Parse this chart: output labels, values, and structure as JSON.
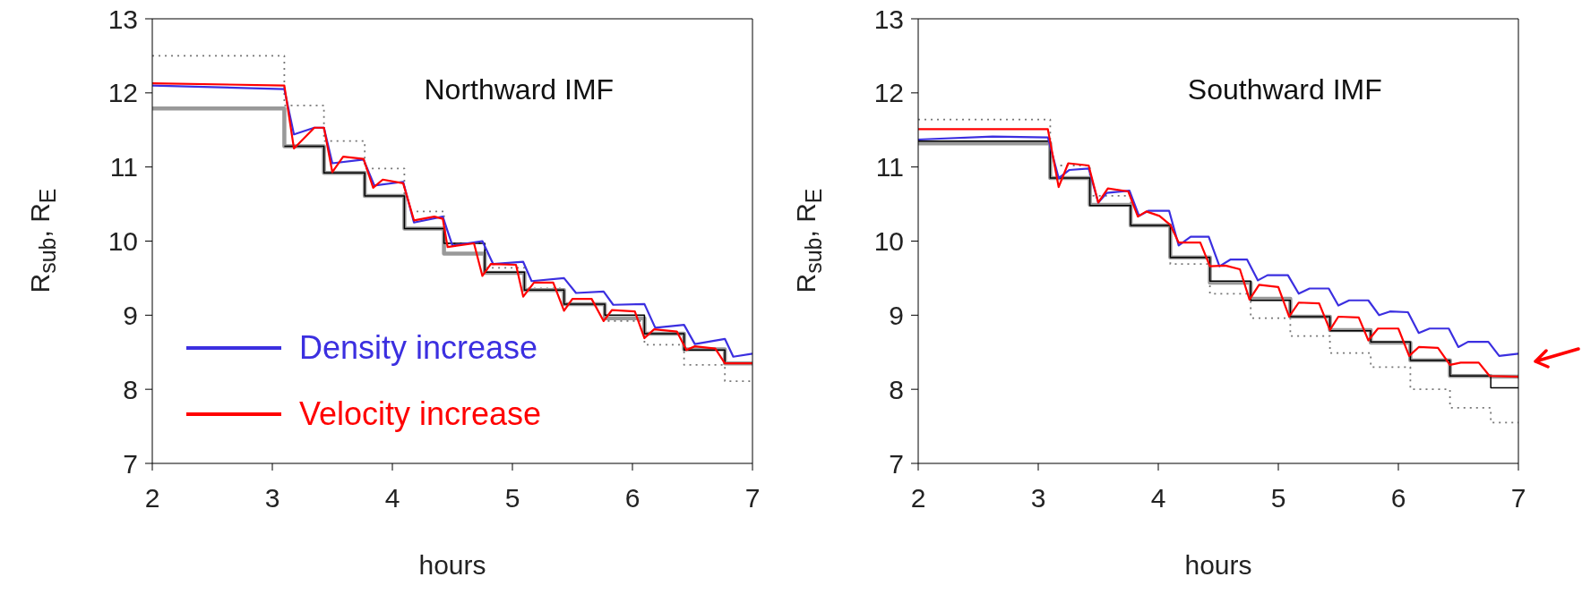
{
  "chart_data": [
    {
      "type": "line",
      "title": "Northward IMF",
      "xlabel": "hours",
      "ylabel": "R$_{sub}$, R$_{E}$",
      "xlim": [
        2,
        7
      ],
      "xticks": [
        2,
        3,
        4,
        5,
        6,
        7
      ],
      "ylim": [
        7,
        13
      ],
      "yticks": [
        7,
        8,
        9,
        10,
        11,
        12,
        13
      ],
      "legend": "bottom left",
      "series": [
        {
          "type": "step",
          "color": "#777777",
          "line_style": "dotted",
          "x": [
            2,
            3.1,
            3.43,
            3.77,
            4.1,
            4.43,
            4.77,
            5.1,
            5.43,
            5.77,
            6.1,
            6.43,
            6.77,
            7
          ],
          "values": [
            12.5,
            11.83,
            11.35,
            10.98,
            10.4,
            9.97,
            9.64,
            9.36,
            9.14,
            8.92,
            8.6,
            8.33,
            8.11,
            8.11
          ]
        },
        {
          "type": "step",
          "color": "#999999",
          "x": [
            2,
            3.1,
            3.43,
            3.77,
            4.1,
            4.43,
            4.77,
            5.1,
            5.43,
            5.77,
            6.1,
            6.43,
            6.77,
            7
          ],
          "values": [
            11.79,
            11.28,
            10.92,
            10.61,
            10.17,
            9.83,
            9.57,
            9.34,
            9.15,
            8.96,
            8.75,
            8.54,
            8.35,
            8.35
          ]
        },
        {
          "type": "step",
          "color": "#000000",
          "x": [
            3.1,
            3.43,
            3.77,
            4.1,
            4.43,
            4.77,
            5.1,
            5.43,
            5.77,
            6.1,
            6.43,
            6.77,
            7
          ],
          "values": [
            11.28,
            10.92,
            10.61,
            10.17,
            9.97,
            9.58,
            9.34,
            9.15,
            9.0,
            8.75,
            8.53,
            8.35,
            8.35
          ]
        },
        {
          "type": "line",
          "name": "Density increase",
          "color": "#3b2fe0",
          "x": [
            2,
            3.1,
            3.18,
            3.35,
            3.43,
            3.5,
            3.76,
            3.85,
            4.09,
            4.18,
            4.42,
            4.5,
            4.75,
            4.84,
            5.09,
            5.16,
            5.43,
            5.53,
            5.76,
            5.84,
            6.1,
            6.19,
            6.43,
            6.52,
            6.77,
            6.84,
            7
          ],
          "values": [
            12.1,
            12.05,
            11.44,
            11.53,
            11.53,
            11.05,
            11.1,
            10.75,
            10.8,
            10.25,
            10.33,
            9.94,
            10.0,
            9.69,
            9.72,
            9.46,
            9.5,
            9.3,
            9.32,
            9.14,
            9.15,
            8.83,
            8.87,
            8.61,
            8.68,
            8.44,
            8.48
          ]
        },
        {
          "type": "line",
          "name": "Velocity increase",
          "color": "#ff0000",
          "x": [
            2,
            3.1,
            3.18,
            3.35,
            3.43,
            3.5,
            3.59,
            3.76,
            3.84,
            3.92,
            4.09,
            4.18,
            4.35,
            4.42,
            4.46,
            4.68,
            4.75,
            4.82,
            5.03,
            5.09,
            5.18,
            5.34,
            5.43,
            5.5,
            5.66,
            5.76,
            5.83,
            6.02,
            6.1,
            6.18,
            6.37,
            6.45,
            6.52,
            6.69,
            6.77,
            7
          ],
          "values": [
            12.13,
            12.1,
            11.25,
            11.53,
            11.53,
            10.93,
            11.14,
            11.11,
            10.72,
            10.83,
            10.78,
            10.28,
            10.33,
            10.3,
            9.92,
            9.97,
            9.53,
            9.69,
            9.68,
            9.25,
            9.44,
            9.44,
            9.06,
            9.22,
            9.22,
            8.92,
            9.07,
            9.05,
            8.69,
            8.81,
            8.78,
            8.53,
            8.58,
            8.55,
            8.35,
            8.35
          ]
        }
      ]
    },
    {
      "type": "line",
      "title": "Southward IMF",
      "xlabel": "hours",
      "ylabel": "R$_{sub}$, R$_{E}$",
      "xlim": [
        2,
        7
      ],
      "xticks": [
        2,
        3,
        4,
        5,
        6,
        7
      ],
      "ylim": [
        7,
        13
      ],
      "yticks": [
        7,
        8,
        9,
        10,
        11,
        12,
        13
      ],
      "series": [
        {
          "type": "step",
          "color": "#777777",
          "line_style": "dotted",
          "x": [
            2,
            3.1,
            3.43,
            3.77,
            4.1,
            4.43,
            4.77,
            5.1,
            5.43,
            5.77,
            6.1,
            6.43,
            6.77,
            7
          ],
          "values": [
            11.64,
            11.02,
            10.61,
            10.22,
            9.69,
            9.29,
            8.96,
            8.72,
            8.49,
            8.3,
            8.0,
            7.75,
            7.55,
            7.55
          ]
        },
        {
          "type": "step",
          "color": "#999999",
          "x": [
            2,
            3.1,
            3.43,
            3.77,
            4.1,
            4.43,
            4.77,
            5.1,
            5.43,
            5.77,
            6.1,
            6.43,
            6.77,
            7
          ],
          "values": [
            11.32,
            10.85,
            10.49,
            10.21,
            9.78,
            9.44,
            9.22,
            8.98,
            8.8,
            8.63,
            8.39,
            8.18,
            8.17,
            8.17
          ]
        },
        {
          "type": "step",
          "color": "#000000",
          "x": [
            2,
            3.1,
            3.43,
            3.77,
            4.1,
            4.43,
            4.77,
            5.1,
            5.43,
            5.77,
            6.1,
            6.43,
            6.77,
            7
          ],
          "values": [
            11.35,
            10.85,
            10.48,
            10.21,
            9.78,
            9.46,
            9.2,
            8.98,
            8.79,
            8.64,
            8.39,
            8.18,
            8.02,
            8.02
          ]
        },
        {
          "type": "line",
          "color": "#3b2fe0",
          "x": [
            2,
            2.62,
            3.08,
            3.17,
            3.26,
            3.42,
            3.5,
            3.57,
            3.76,
            3.84,
            3.92,
            4.09,
            4.17,
            4.27,
            4.42,
            4.51,
            4.6,
            4.74,
            4.83,
            4.91,
            5.08,
            5.17,
            5.26,
            5.42,
            5.5,
            5.59,
            5.75,
            5.84,
            5.93,
            6.08,
            6.17,
            6.26,
            6.42,
            6.5,
            6.58,
            6.75,
            6.84,
            7
          ],
          "values": [
            11.37,
            11.41,
            11.4,
            10.85,
            10.96,
            10.98,
            10.52,
            10.65,
            10.68,
            10.34,
            10.41,
            10.41,
            9.94,
            10.06,
            10.06,
            9.66,
            9.75,
            9.75,
            9.47,
            9.54,
            9.54,
            9.29,
            9.36,
            9.36,
            9.13,
            9.2,
            9.2,
            9.0,
            9.05,
            9.04,
            8.76,
            8.82,
            8.82,
            8.57,
            8.64,
            8.64,
            8.45,
            8.48
          ]
        },
        {
          "type": "line",
          "color": "#ff0000",
          "x": [
            2,
            3.08,
            3.17,
            3.25,
            3.42,
            3.5,
            3.58,
            3.75,
            3.83,
            3.9,
            4.01,
            4.1,
            4.17,
            4.35,
            4.43,
            4.56,
            4.68,
            4.76,
            4.84,
            5.0,
            5.09,
            5.17,
            5.34,
            5.43,
            5.5,
            5.67,
            5.75,
            5.83,
            6.0,
            6.09,
            6.17,
            6.33,
            6.43,
            6.52,
            6.67,
            6.76,
            7
          ],
          "values": [
            11.51,
            11.51,
            10.73,
            11.05,
            11.02,
            10.52,
            10.71,
            10.67,
            10.33,
            10.4,
            10.34,
            10.22,
            9.98,
            9.98,
            9.66,
            9.67,
            9.62,
            9.21,
            9.41,
            9.38,
            8.98,
            9.17,
            9.16,
            8.8,
            8.98,
            8.97,
            8.66,
            8.82,
            8.82,
            8.45,
            8.57,
            8.56,
            8.33,
            8.36,
            8.36,
            8.18,
            8.17
          ]
        }
      ]
    }
  ]
}
